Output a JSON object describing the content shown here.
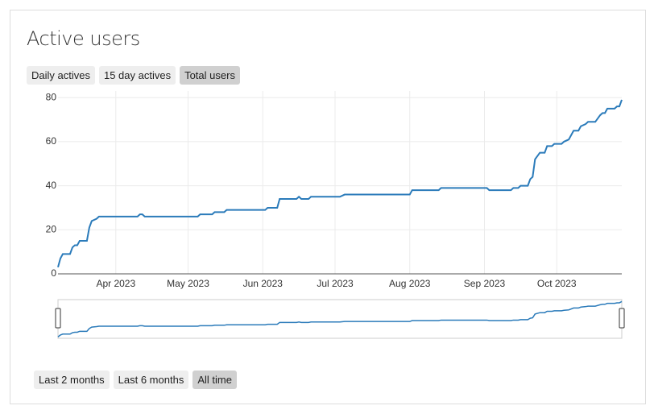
{
  "header": {
    "title": "Active users"
  },
  "metric_tabs": [
    {
      "label": "Daily actives",
      "selected": false
    },
    {
      "label": "15 day actives",
      "selected": false
    },
    {
      "label": "Total users",
      "selected": true
    }
  ],
  "range_tabs": [
    {
      "label": "Last 2 months",
      "selected": false
    },
    {
      "label": "Last 6 months",
      "selected": false
    },
    {
      "label": "All time",
      "selected": true
    }
  ],
  "chart_data": {
    "type": "line",
    "x": [
      67,
      68,
      69,
      72,
      73,
      74,
      75,
      76,
      79,
      80,
      81,
      83,
      84,
      100,
      101,
      102,
      103,
      125,
      126,
      131,
      132,
      136,
      137,
      153,
      154,
      158,
      159,
      166,
      167,
      168,
      171,
      172,
      184,
      186,
      213,
      214,
      225,
      226,
      245,
      246,
      255,
      256,
      258,
      259,
      262,
      263,
      264,
      265,
      267,
      269,
      270,
      272,
      273,
      276,
      277,
      279,
      281,
      283,
      284,
      286,
      287,
      290,
      292,
      293,
      294,
      295,
      298,
      299,
      300,
      301
    ],
    "series": [
      {
        "color": "#2b7bba",
        "values": [
          3,
          7,
          9,
          9,
          12,
          13,
          13,
          15,
          15,
          21,
          24,
          25,
          26,
          26,
          27,
          27,
          26,
          26,
          27,
          27,
          28,
          28,
          29,
          29,
          30,
          30,
          34,
          34,
          35,
          34,
          34,
          35,
          35,
          36,
          36,
          38,
          38,
          39,
          39,
          38,
          38,
          39,
          39,
          40,
          40,
          43,
          44,
          52,
          55,
          55,
          58,
          58,
          59,
          59,
          60,
          61,
          65,
          65,
          67,
          68,
          69,
          69,
          72,
          73,
          73,
          75,
          75,
          76,
          76,
          79
        ]
      }
    ],
    "xlim": [
      67,
      301
    ],
    "xticks": [
      {
        "value": 91,
        "label": "Apr 2023"
      },
      {
        "value": 121,
        "label": "May 2023"
      },
      {
        "value": 152,
        "label": "Jun 2023"
      },
      {
        "value": 182,
        "label": "Jul 2023"
      },
      {
        "value": 213,
        "label": "Aug 2023"
      },
      {
        "value": 244,
        "label": "Sep 2023"
      },
      {
        "value": 274,
        "label": "Oct 2023"
      }
    ],
    "ylim": [
      0,
      83
    ],
    "yticks": [
      0,
      20,
      40,
      60,
      80
    ],
    "grid": true
  }
}
